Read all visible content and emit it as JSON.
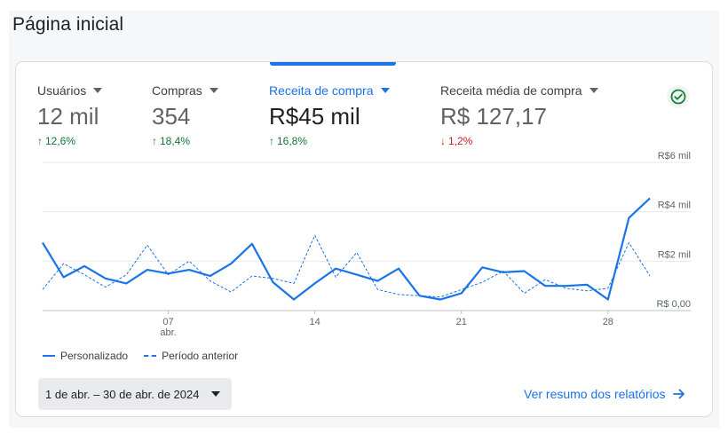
{
  "page": {
    "title": "Página inicial"
  },
  "metrics": [
    {
      "label": "Usuários",
      "value": "12 mil",
      "change": "12,6%",
      "direction": "up",
      "active": false
    },
    {
      "label": "Compras",
      "value": "354",
      "change": "18,4%",
      "direction": "up",
      "active": false
    },
    {
      "label": "Receita de compra",
      "value": "R$45 mil",
      "change": "16,8%",
      "direction": "up",
      "active": true
    },
    {
      "label": "Receita média de compra",
      "value": "R$ 127,17",
      "change": "1,2%",
      "direction": "down",
      "active": false
    }
  ],
  "colors": {
    "accent": "#1a73e8",
    "positive": "#137333",
    "negative": "#c5221f",
    "check": "#188038"
  },
  "icons": {
    "check": "check-circle-icon",
    "arrow_up": "arrow-up-icon",
    "arrow_down": "arrow-down-icon",
    "arrow_right": "arrow-right-icon"
  },
  "chart_data": {
    "type": "line",
    "y_axis_position": "right",
    "ylim": [
      0,
      6000
    ],
    "yticks": [
      {
        "value": 0,
        "label": "R$ 0,00"
      },
      {
        "value": 2000,
        "label": "R$2 mil"
      },
      {
        "value": 4000,
        "label": "R$4 mil"
      },
      {
        "value": 6000,
        "label": "R$6 mil"
      }
    ],
    "x": [
      1,
      2,
      3,
      4,
      5,
      6,
      7,
      8,
      9,
      10,
      11,
      12,
      13,
      14,
      15,
      16,
      17,
      18,
      19,
      20,
      21,
      22,
      23,
      24,
      25,
      26,
      27,
      28,
      29,
      30
    ],
    "xticks": [
      {
        "day": 7,
        "label": "07",
        "sublabel": "abr."
      },
      {
        "day": 14,
        "label": "14",
        "sublabel": ""
      },
      {
        "day": 21,
        "label": "21",
        "sublabel": ""
      },
      {
        "day": 28,
        "label": "28",
        "sublabel": ""
      }
    ],
    "series": [
      {
        "name": "Personalizado",
        "style": "solid",
        "values": [
          2750,
          1350,
          1800,
          1300,
          1100,
          1650,
          1500,
          1650,
          1400,
          1900,
          2700,
          1150,
          450,
          1100,
          1700,
          1450,
          1200,
          1700,
          600,
          450,
          700,
          1750,
          1550,
          1600,
          1000,
          1000,
          1050,
          450,
          3750,
          4550
        ]
      },
      {
        "name": "Período anterior",
        "style": "dashed",
        "values": [
          850,
          1900,
          1450,
          950,
          1450,
          2650,
          1450,
          2000,
          1200,
          750,
          1400,
          1300,
          1100,
          3050,
          1350,
          2350,
          850,
          650,
          600,
          550,
          850,
          1150,
          1600,
          700,
          1250,
          900,
          800,
          900,
          2750,
          1400
        ]
      }
    ],
    "grid": true,
    "legend_position": "bottom-left"
  },
  "date_range": {
    "label": "1 de abr. – 30 de abr. de 2024"
  },
  "report_link": {
    "label": "Ver resumo dos relatórios"
  }
}
